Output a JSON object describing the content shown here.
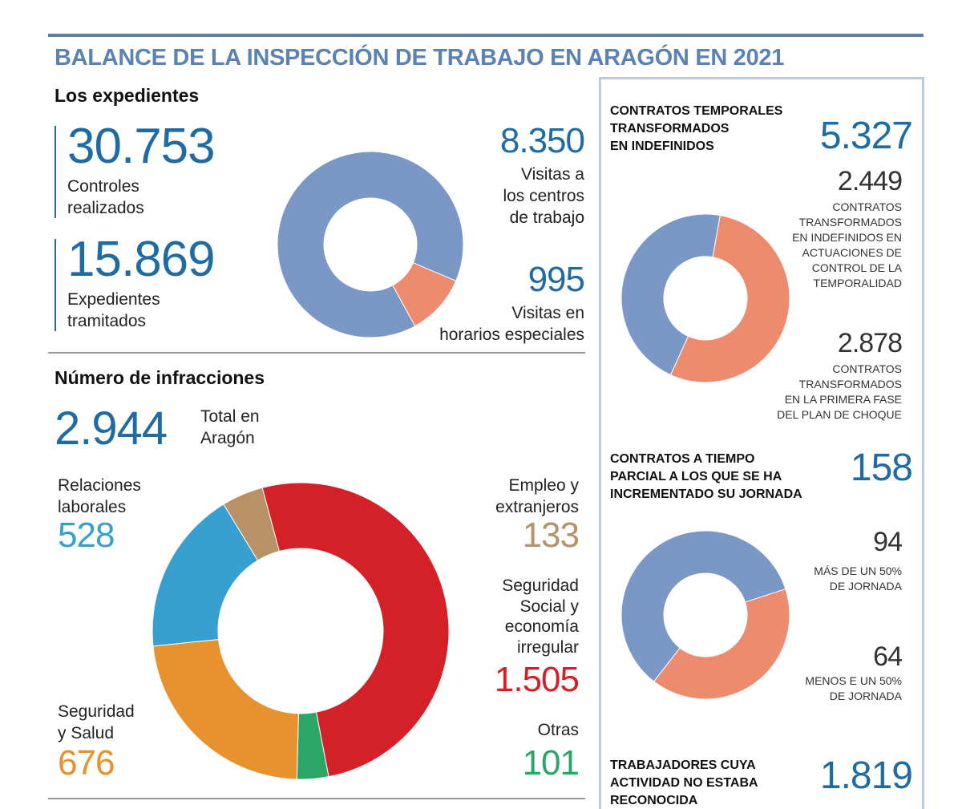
{
  "title": "BALANCE DE LA INSPECCIÓN DE TRABAJO EN ARAGÓN EN 2021",
  "expedientes": {
    "heading": "Los expedientes",
    "controles": {
      "value": "30.753",
      "label1": "Controles",
      "label2": "realizados"
    },
    "tramitados": {
      "value": "15.869",
      "label1": "Expedientes",
      "label2": "tramitados"
    },
    "visitas_centros": {
      "value": "8.350",
      "label1": "Visitas a",
      "label2": "los centros",
      "label3": "de trabajo"
    },
    "visitas_especiales": {
      "value": "995",
      "label1": "Visitas en",
      "label2": "horarios especiales"
    }
  },
  "infracciones": {
    "heading": "Número de infracciones",
    "total": {
      "value": "2.944",
      "label1": "Total en",
      "label2": "Aragón"
    },
    "relaciones": {
      "label1": "Relaciones",
      "label2": "laborales",
      "value": "528"
    },
    "empleo": {
      "label1": "Empleo y",
      "label2": "extranjeros",
      "value": "133"
    },
    "seguridad_social": {
      "label1": "Seguridad",
      "label2": "Social y",
      "label3": "economía",
      "label4": "irregular",
      "value": "1.505"
    },
    "otras": {
      "label1": "Otras",
      "value": "101"
    },
    "salud": {
      "label1": "Seguridad",
      "label2": "y Salud",
      "value": "676"
    }
  },
  "sidebar": {
    "temporales": {
      "l1": "CONTRATOS TEMPORALES",
      "l2": "TRANSFORMADOS",
      "l3": "EN INDEFINIDOS",
      "value": "5.327"
    },
    "actuaciones": {
      "value": "2.449",
      "l1": "CONTRATOS",
      "l2": "TRANSFORMADOS",
      "l3": "EN INDEFINIDOS EN",
      "l4": "ACTUACIONES DE",
      "l5": "CONTROL DE LA",
      "l6": "TEMPORALIDAD"
    },
    "choque": {
      "value": "2.878",
      "l1": "CONTRATOS",
      "l2": "TRANSFORMADOS",
      "l3": "EN LA PRIMERA FASE",
      "l4": "DEL PLAN DE CHOQUE"
    },
    "parcial": {
      "l1": "CONTRATOS A TIEMPO",
      "l2": "PARCIAL A LOS QUE SE HA",
      "l3": "INCREMENTADO SU JORNADA",
      "value": "158"
    },
    "mas50": {
      "value": "94",
      "l1": "MÁS DE UN 50%",
      "l2": "DE JORNADA"
    },
    "menos50": {
      "value": "64",
      "l1": "MENOS E UN 50%",
      "l2": "DE JORNADA"
    },
    "trabajadores": {
      "l1": "TRABAJADORES CUYA",
      "l2": "ACTIVIDAD NO ESTABA",
      "l3": "RECONOCIDA",
      "value": "1.819"
    }
  },
  "colors": {
    "blue_num": "#1f6ca3",
    "slate": "#7b97c6",
    "salmon": "#ec8b6e",
    "red": "#d42027",
    "green": "#2aa666",
    "orange": "#e8912f",
    "cyan": "#37a0d0",
    "tan": "#b89167"
  },
  "chart_data": [
    {
      "type": "pie",
      "title": "Visitas",
      "categories": [
        "Visitas a los centros de trabajo",
        "Visitas en horarios especiales"
      ],
      "values": [
        8350,
        995
      ],
      "colors": [
        "#7b97c6",
        "#ec8b6e"
      ],
      "start_deg": 113,
      "order": [
        1,
        0
      ]
    },
    {
      "type": "pie",
      "title": "Número de infracciones",
      "categories": [
        "Seguridad Social y economía irregular",
        "Otras",
        "Seguridad y Salud",
        "Relaciones laborales",
        "Empleo y extranjeros"
      ],
      "values": [
        1505,
        101,
        676,
        528,
        133
      ],
      "colors": [
        "#d42027",
        "#2aa666",
        "#e8912f",
        "#37a0d0",
        "#b89167"
      ],
      "start_deg": 345
    },
    {
      "type": "pie",
      "title": "Contratos temporales transformados en indefinidos",
      "categories": [
        "Plan de choque",
        "Actuaciones de control de la temporalidad"
      ],
      "values": [
        2878,
        2449
      ],
      "colors": [
        "#ec8b6e",
        "#7b97c6"
      ],
      "start_deg": 10
    },
    {
      "type": "pie",
      "title": "Contratos a tiempo parcial",
      "categories": [
        "Menos de un 50% de jornada",
        "Más de un 50% de jornada"
      ],
      "values": [
        64,
        94
      ],
      "colors": [
        "#ec8b6e",
        "#7b97c6"
      ],
      "start_deg": 72
    }
  ]
}
